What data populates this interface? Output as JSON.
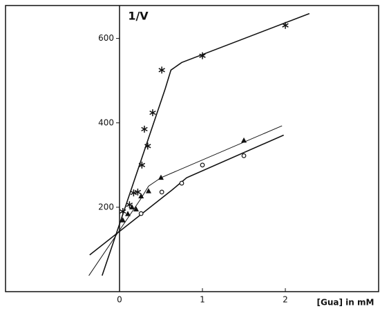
{
  "chart_data": {
    "type": "scatter",
    "y_label": "1/V",
    "x_label": "[Gua] in mM",
    "xlim": [
      -1.375,
      3.125
    ],
    "ylim": [
      0,
      678
    ],
    "xticks": [
      0,
      1,
      2
    ],
    "yticks": [
      200,
      400,
      600
    ],
    "color": "#111111",
    "series": [
      {
        "marker": "star",
        "x": [
          0.04,
          0.12,
          0.17,
          0.22,
          0.27,
          0.34,
          0.3,
          0.4,
          0.51,
          1.0,
          2.0
        ],
        "values": [
          190,
          206,
          234,
          236,
          300,
          345,
          385,
          424,
          525,
          559,
          631
        ]
      },
      {
        "marker": "triangle",
        "x": [
          0.04,
          0.1,
          0.15,
          0.2,
          0.26,
          0.35,
          0.5,
          1.5
        ],
        "values": [
          169,
          184,
          200,
          195,
          226,
          238,
          270,
          358
        ]
      },
      {
        "marker": "circle",
        "x": [
          0.26,
          0.51,
          0.75,
          1.0,
          1.5
        ],
        "values": [
          185,
          236,
          257,
          300,
          322
        ]
      }
    ],
    "lines": [
      {
        "width": 1.6,
        "x": [
          -0.21,
          0.55,
          0.62,
          0.75,
          2.29
        ],
        "values": [
          38,
          480,
          525,
          543,
          659
        ]
      },
      {
        "width": 1.0,
        "x": [
          -0.37,
          0.25,
          0.35,
          0.5,
          1.96
        ],
        "values": [
          38,
          218,
          250,
          270,
          393
        ]
      },
      {
        "width": 1.6,
        "x": [
          -0.36,
          0.64,
          0.81,
          1.98
        ],
        "values": [
          87,
          242,
          270,
          371
        ]
      }
    ]
  }
}
